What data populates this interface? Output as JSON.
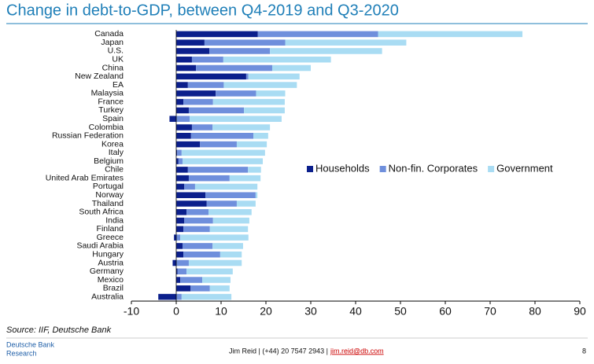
{
  "chart_data": {
    "type": "bar",
    "orientation": "horizontal",
    "stacked": true,
    "title": "Change in debt-to-GDP, between Q4-2019 and Q3-2020",
    "source": "Source: IIF, Deutsche Bank",
    "categories": [
      "Canada",
      "Japan",
      "U.S.",
      "UK",
      "China",
      "New Zealand",
      "EA",
      "Malaysia",
      "France",
      "Turkey",
      "Spain",
      "Colombia",
      "Russian Federation",
      "Korea",
      "Italy",
      "Belgium",
      "Chile",
      "United Arab Emirates",
      "Portugal",
      "Norway",
      "Thailand",
      "South Africa",
      "India",
      "Finland",
      "Greece",
      "Saudi Arabia",
      "Hungary",
      "Austria",
      "Germany",
      "Mexico",
      "Brazil",
      "Australia"
    ],
    "series": [
      {
        "name": "Households",
        "color": "#0b1f8c",
        "values": [
          18.2,
          6.3,
          7.4,
          3.5,
          4.4,
          15.6,
          2.6,
          8.8,
          1.6,
          2.8,
          -1.5,
          3.5,
          3.3,
          5.3,
          0.2,
          0.5,
          2.6,
          2.8,
          1.8,
          6.5,
          6.8,
          2.3,
          1.8,
          1.6,
          -0.5,
          1.4,
          1.6,
          -0.8,
          0.3,
          0.9,
          3.2,
          -4
        ]
      },
      {
        "name": "Non-fin. Corporates",
        "color": "#6f8fdc",
        "values": [
          26.8,
          18,
          13.5,
          7,
          17,
          0.5,
          8,
          9,
          6.6,
          12.3,
          3,
          4.6,
          13.9,
          8.2,
          1,
          0.9,
          13.4,
          9.1,
          2.4,
          11.2,
          6.7,
          4.9,
          6.4,
          5.9,
          0.9,
          6.7,
          8.2,
          2.8,
          2,
          4.9,
          4.3,
          1.2
        ]
      },
      {
        "name": "Government",
        "color": "#a9dcf3",
        "values": [
          32.2,
          27,
          25,
          24,
          8.6,
          11.4,
          16.3,
          6.5,
          16,
          9.1,
          20.5,
          12.8,
          3.3,
          6.7,
          18.6,
          17.9,
          2.9,
          6.9,
          13.9,
          0.4,
          4.2,
          9.6,
          8.1,
          8.5,
          15.2,
          6.8,
          4.8,
          11.8,
          10.3,
          6.3,
          4.4,
          11.1
        ]
      }
    ],
    "xlim": [
      -10,
      90
    ],
    "xticks": [
      -10,
      0,
      10,
      20,
      30,
      40,
      50,
      60,
      70,
      80,
      90
    ],
    "legend": "right"
  },
  "footer": {
    "company": "Deutsche Bank",
    "division": "Research",
    "contact": "Jim Reid | (+44) 20 7547 2943 |",
    "email": "jim.reid@db.com",
    "page": "8"
  }
}
